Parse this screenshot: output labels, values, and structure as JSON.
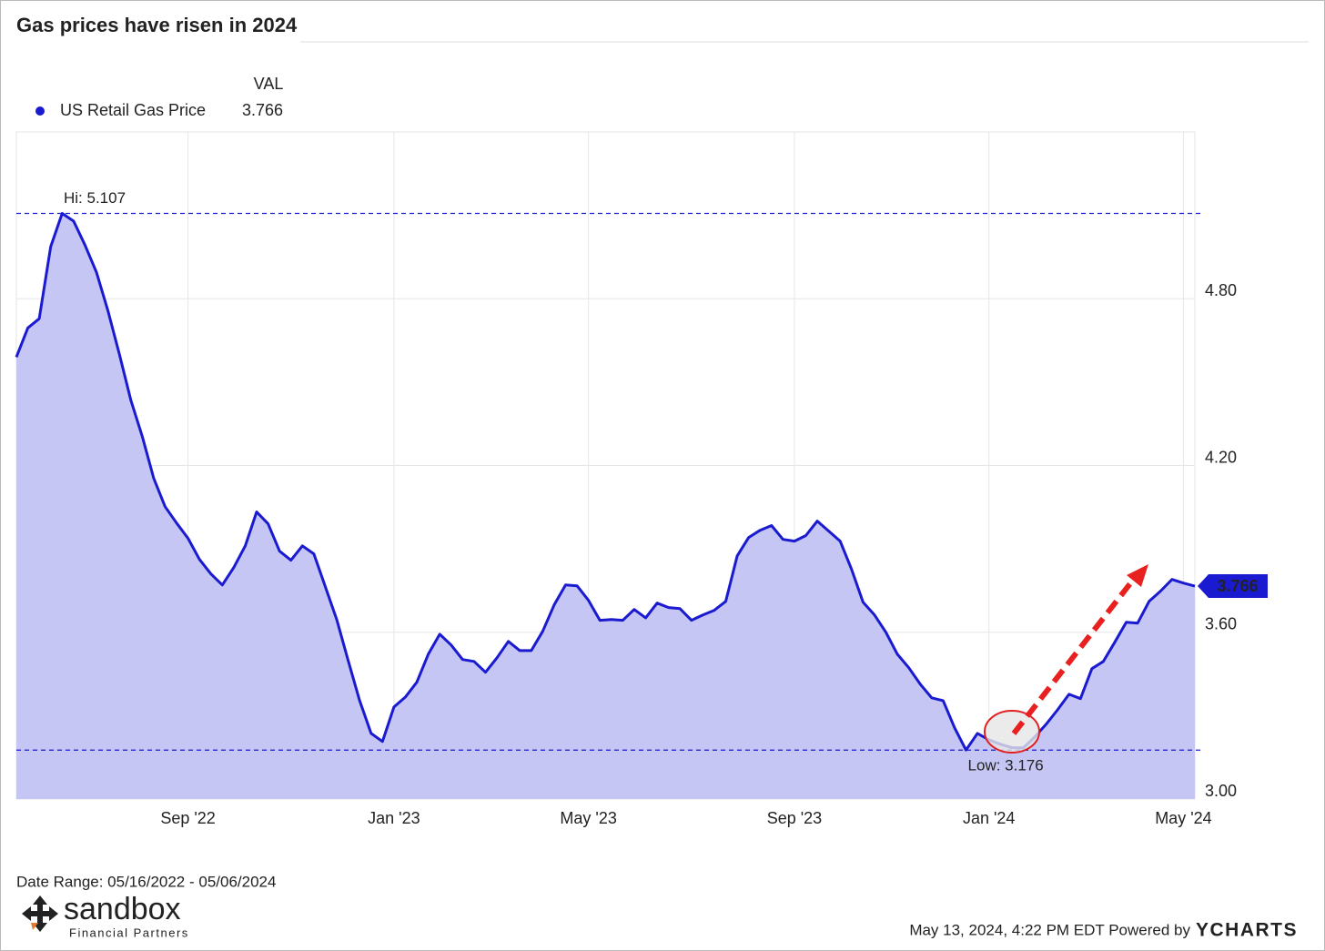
{
  "chart_data": {
    "type": "line",
    "title": "Gas prices have risen in 2024",
    "legend_header": "VAL",
    "categories": [
      null,
      null,
      null,
      null,
      null,
      null,
      null,
      null,
      null,
      null,
      null,
      null,
      null,
      null,
      null,
      "Sep '22",
      null,
      null,
      null,
      null,
      null,
      null,
      null,
      null,
      null,
      null,
      null,
      null,
      null,
      null,
      null,
      null,
      null,
      "Jan '23",
      null,
      null,
      null,
      null,
      null,
      null,
      null,
      null,
      null,
      null,
      null,
      null,
      null,
      null,
      null,
      null,
      "May '23",
      null,
      null,
      null,
      null,
      null,
      null,
      null,
      null,
      null,
      null,
      null,
      null,
      null,
      null,
      null,
      null,
      null,
      "Sep '23",
      null,
      null,
      null,
      null,
      null,
      null,
      null,
      null,
      null,
      null,
      null,
      null,
      null,
      null,
      null,
      null,
      "Jan '24",
      null,
      null,
      null,
      null,
      null,
      null,
      null,
      null,
      null,
      null,
      null,
      null,
      null,
      null,
      null,
      null,
      "May '24",
      null
    ],
    "series": [
      {
        "name": "US Retail Gas Price",
        "color": "#1a1ad0",
        "fill": "#c6c6f4",
        "values": [
          4.59,
          4.695,
          4.728,
          4.987,
          5.107,
          5.079,
          4.993,
          4.895,
          4.757,
          4.6,
          4.436,
          4.305,
          4.154,
          4.052,
          3.993,
          3.938,
          3.862,
          3.81,
          3.77,
          3.833,
          3.911,
          4.033,
          3.99,
          3.892,
          3.859,
          3.911,
          3.882,
          3.764,
          3.646,
          3.498,
          3.354,
          3.236,
          3.207,
          3.331,
          3.367,
          3.42,
          3.521,
          3.593,
          3.554,
          3.502,
          3.495,
          3.456,
          3.508,
          3.567,
          3.534,
          3.534,
          3.603,
          3.698,
          3.77,
          3.767,
          3.715,
          3.643,
          3.646,
          3.643,
          3.682,
          3.652,
          3.705,
          3.689,
          3.685,
          3.643,
          3.662,
          3.679,
          3.711,
          3.875,
          3.941,
          3.967,
          3.984,
          3.934,
          3.928,
          3.948,
          4.0,
          3.964,
          3.928,
          3.826,
          3.708,
          3.662,
          3.6,
          3.521,
          3.472,
          3.413,
          3.364,
          3.354,
          3.256,
          3.176,
          3.236,
          3.213,
          3.197,
          3.185,
          3.184,
          3.223,
          3.269,
          3.321,
          3.377,
          3.361,
          3.469,
          3.495,
          3.564,
          3.636,
          3.633,
          3.711,
          3.748,
          3.79,
          3.777,
          3.766
        ]
      }
    ],
    "ylim": [
      3.0,
      5.4
    ],
    "yticks": [
      {
        "value": 3.0,
        "label": "3.00"
      },
      {
        "value": 3.6,
        "label": "3.60"
      },
      {
        "value": 4.2,
        "label": "4.20"
      },
      {
        "value": 4.8,
        "label": "4.80"
      }
    ],
    "hi": {
      "value": 5.107,
      "label": "Hi: 5.107"
    },
    "low": {
      "value": 3.176,
      "label": "Low: 3.176"
    },
    "grid": true
  },
  "footer": {
    "date_range": "Date Range: 05/16/2022 - 05/06/2024",
    "timestamp": "May 13, 2024, 4:22 PM EDT Powered by",
    "brand": "YCHARTS",
    "logo_name": "sandbox",
    "logo_sub": "Financial Partners"
  }
}
